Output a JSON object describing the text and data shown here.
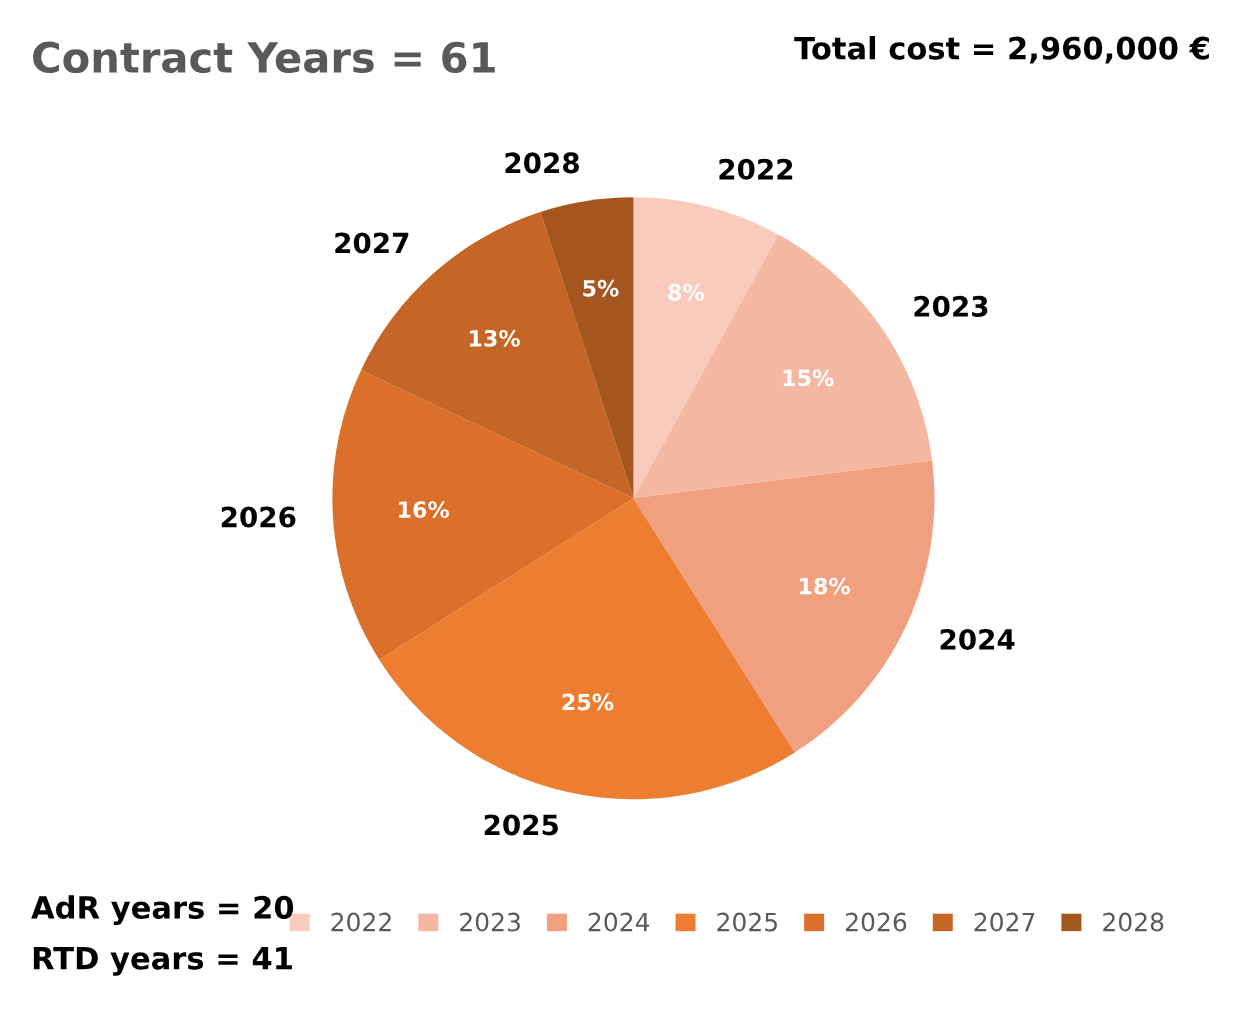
{
  "chart_data": {
    "type": "pie",
    "title": "Contract Years = 61",
    "categories": [
      "2022",
      "2023",
      "2024",
      "2025",
      "2026",
      "2027",
      "2028"
    ],
    "values": [
      8,
      15,
      18,
      25,
      16,
      13,
      5
    ],
    "value_labels": [
      "8%",
      "15%",
      "18%",
      "25%",
      "16%",
      "13%",
      "5%"
    ],
    "colors": [
      "#f8cbbd",
      "#f4b8a2",
      "#f0a07e",
      "#ed7d31",
      "#dc6f2a",
      "#c56526",
      "#a5561f"
    ],
    "legend": "bottom",
    "annotations": [
      "Total cost = 2,960,000 €",
      "AdR years = 20",
      "RTD years = 41"
    ]
  }
}
